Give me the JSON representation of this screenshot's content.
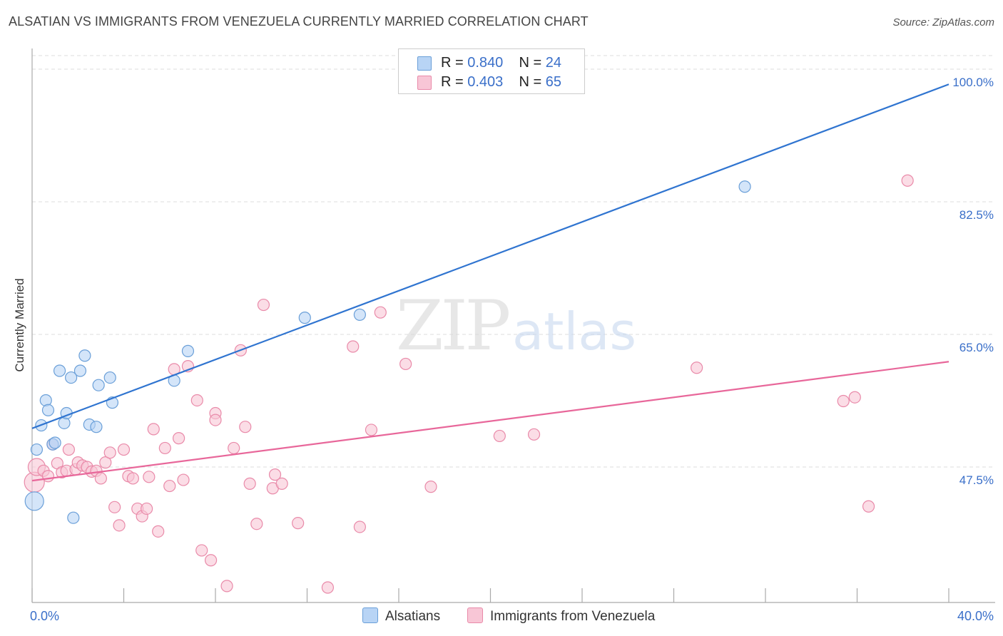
{
  "title": "ALSATIAN VS IMMIGRANTS FROM VENEZUELA CURRENTLY MARRIED CORRELATION CHART",
  "source": "Source: ZipAtlas.com",
  "watermark": {
    "zip": "ZIP",
    "atlas": "atlas"
  },
  "legend": {
    "series1": {
      "r_label": "R =",
      "r_value": "0.840",
      "n_label": "N =",
      "n_value": "24"
    },
    "series2": {
      "r_label": "R =",
      "r_value": "0.403",
      "n_label": "N =",
      "n_value": "65"
    }
  },
  "colors": {
    "blue_fill": "#b8d4f5",
    "blue_stroke": "#6a9fd8",
    "blue_line": "#2f74d0",
    "pink_fill": "#f8c6d6",
    "pink_stroke": "#e98aa9",
    "pink_line": "#e8679a",
    "axis_text": "#3a6fc9",
    "grid": "#dddddd"
  },
  "chart_data": {
    "type": "scatter",
    "title": "ALSATIAN VS IMMIGRANTS FROM VENEZUELA CURRENTLY MARRIED CORRELATION CHART",
    "xlabel": "",
    "ylabel": "Currently Married",
    "xlim": [
      0,
      40
    ],
    "ylim": [
      30,
      102
    ],
    "x_tick_labels": [
      "0.0%",
      "40.0%"
    ],
    "y_ticks": [
      47.5,
      65.0,
      82.5,
      100.0
    ],
    "y_tick_labels": [
      "47.5%",
      "65.0%",
      "82.5%",
      "100.0%"
    ],
    "grid": true,
    "legend_position": "top-center",
    "series": [
      {
        "name": "Alsatians",
        "r": 0.84,
        "n": 24,
        "trend": {
          "x": [
            0,
            40
          ],
          "y": [
            52.6,
            98.0
          ]
        },
        "points": [
          {
            "x": 0.1,
            "y": 43.0,
            "s": 13
          },
          {
            "x": 0.2,
            "y": 49.8,
            "s": 8
          },
          {
            "x": 0.4,
            "y": 53.0,
            "s": 8
          },
          {
            "x": 0.6,
            "y": 56.3,
            "s": 8
          },
          {
            "x": 0.7,
            "y": 55.0,
            "s": 8
          },
          {
            "x": 0.9,
            "y": 50.5,
            "s": 8
          },
          {
            "x": 1.0,
            "y": 50.7,
            "s": 8
          },
          {
            "x": 1.2,
            "y": 60.2,
            "s": 8
          },
          {
            "x": 1.4,
            "y": 53.3,
            "s": 8
          },
          {
            "x": 1.5,
            "y": 54.6,
            "s": 8
          },
          {
            "x": 1.7,
            "y": 59.3,
            "s": 8
          },
          {
            "x": 1.8,
            "y": 40.8,
            "s": 8
          },
          {
            "x": 2.1,
            "y": 60.2,
            "s": 8
          },
          {
            "x": 2.3,
            "y": 62.2,
            "s": 8
          },
          {
            "x": 2.5,
            "y": 53.1,
            "s": 8
          },
          {
            "x": 2.8,
            "y": 52.8,
            "s": 8
          },
          {
            "x": 2.9,
            "y": 58.3,
            "s": 8
          },
          {
            "x": 3.4,
            "y": 59.3,
            "s": 8
          },
          {
            "x": 3.5,
            "y": 56.0,
            "s": 8
          },
          {
            "x": 6.2,
            "y": 58.9,
            "s": 8
          },
          {
            "x": 6.8,
            "y": 62.8,
            "s": 8
          },
          {
            "x": 11.9,
            "y": 67.2,
            "s": 8
          },
          {
            "x": 14.3,
            "y": 67.6,
            "s": 8
          },
          {
            "x": 31.1,
            "y": 84.5,
            "s": 8
          }
        ]
      },
      {
        "name": "Immigrants from Venezuela",
        "r": 0.403,
        "n": 65,
        "trend": {
          "x": [
            0,
            40
          ],
          "y": [
            45.7,
            61.4
          ]
        },
        "points": [
          {
            "x": 0.1,
            "y": 45.5,
            "s": 14
          },
          {
            "x": 0.2,
            "y": 47.5,
            "s": 12
          },
          {
            "x": 0.5,
            "y": 47.0,
            "s": 8
          },
          {
            "x": 0.7,
            "y": 46.3,
            "s": 8
          },
          {
            "x": 0.9,
            "y": 50.5,
            "s": 8
          },
          {
            "x": 1.1,
            "y": 48.0,
            "s": 8
          },
          {
            "x": 1.3,
            "y": 46.8,
            "s": 8
          },
          {
            "x": 1.5,
            "y": 47.0,
            "s": 8
          },
          {
            "x": 1.6,
            "y": 49.8,
            "s": 8
          },
          {
            "x": 1.9,
            "y": 47.2,
            "s": 8
          },
          {
            "x": 2.0,
            "y": 48.1,
            "s": 8
          },
          {
            "x": 2.2,
            "y": 47.7,
            "s": 8
          },
          {
            "x": 2.4,
            "y": 47.5,
            "s": 8
          },
          {
            "x": 2.6,
            "y": 46.9,
            "s": 8
          },
          {
            "x": 2.8,
            "y": 47.0,
            "s": 8
          },
          {
            "x": 3.0,
            "y": 46.0,
            "s": 8
          },
          {
            "x": 3.2,
            "y": 48.1,
            "s": 8
          },
          {
            "x": 3.4,
            "y": 49.4,
            "s": 8
          },
          {
            "x": 3.6,
            "y": 42.2,
            "s": 8
          },
          {
            "x": 3.8,
            "y": 39.8,
            "s": 8
          },
          {
            "x": 4.0,
            "y": 49.8,
            "s": 8
          },
          {
            "x": 4.2,
            "y": 46.3,
            "s": 8
          },
          {
            "x": 4.4,
            "y": 46.0,
            "s": 8
          },
          {
            "x": 4.6,
            "y": 42.0,
            "s": 8
          },
          {
            "x": 4.8,
            "y": 41.0,
            "s": 8
          },
          {
            "x": 5.0,
            "y": 42.0,
            "s": 8
          },
          {
            "x": 5.1,
            "y": 46.2,
            "s": 8
          },
          {
            "x": 5.3,
            "y": 52.5,
            "s": 8
          },
          {
            "x": 5.5,
            "y": 39.0,
            "s": 8
          },
          {
            "x": 5.8,
            "y": 50.0,
            "s": 8
          },
          {
            "x": 6.0,
            "y": 45.0,
            "s": 8
          },
          {
            "x": 6.2,
            "y": 60.4,
            "s": 8
          },
          {
            "x": 6.4,
            "y": 51.3,
            "s": 8
          },
          {
            "x": 6.6,
            "y": 45.8,
            "s": 8
          },
          {
            "x": 6.8,
            "y": 60.8,
            "s": 8
          },
          {
            "x": 7.2,
            "y": 56.3,
            "s": 8
          },
          {
            "x": 7.4,
            "y": 36.5,
            "s": 8
          },
          {
            "x": 7.8,
            "y": 35.2,
            "s": 8
          },
          {
            "x": 8.0,
            "y": 54.6,
            "s": 8
          },
          {
            "x": 8.0,
            "y": 53.7,
            "s": 8
          },
          {
            "x": 8.5,
            "y": 31.8,
            "s": 8
          },
          {
            "x": 8.8,
            "y": 50.0,
            "s": 8
          },
          {
            "x": 9.1,
            "y": 62.9,
            "s": 8
          },
          {
            "x": 9.3,
            "y": 52.8,
            "s": 8
          },
          {
            "x": 9.5,
            "y": 45.3,
            "s": 8
          },
          {
            "x": 9.8,
            "y": 40.0,
            "s": 8
          },
          {
            "x": 10.1,
            "y": 68.9,
            "s": 8
          },
          {
            "x": 10.5,
            "y": 44.7,
            "s": 8
          },
          {
            "x": 10.6,
            "y": 46.5,
            "s": 8
          },
          {
            "x": 10.9,
            "y": 45.3,
            "s": 8
          },
          {
            "x": 11.6,
            "y": 40.1,
            "s": 8
          },
          {
            "x": 12.9,
            "y": 31.6,
            "s": 8
          },
          {
            "x": 14.0,
            "y": 63.4,
            "s": 8
          },
          {
            "x": 14.3,
            "y": 39.6,
            "s": 8
          },
          {
            "x": 14.8,
            "y": 52.4,
            "s": 8
          },
          {
            "x": 15.2,
            "y": 67.9,
            "s": 8
          },
          {
            "x": 16.3,
            "y": 61.1,
            "s": 8
          },
          {
            "x": 17.4,
            "y": 44.9,
            "s": 8
          },
          {
            "x": 20.4,
            "y": 51.6,
            "s": 8
          },
          {
            "x": 21.9,
            "y": 51.8,
            "s": 8
          },
          {
            "x": 29.0,
            "y": 60.6,
            "s": 8
          },
          {
            "x": 35.4,
            "y": 56.2,
            "s": 8
          },
          {
            "x": 35.9,
            "y": 56.7,
            "s": 8
          },
          {
            "x": 36.5,
            "y": 42.3,
            "s": 8
          },
          {
            "x": 38.2,
            "y": 85.3,
            "s": 8
          }
        ]
      }
    ]
  }
}
